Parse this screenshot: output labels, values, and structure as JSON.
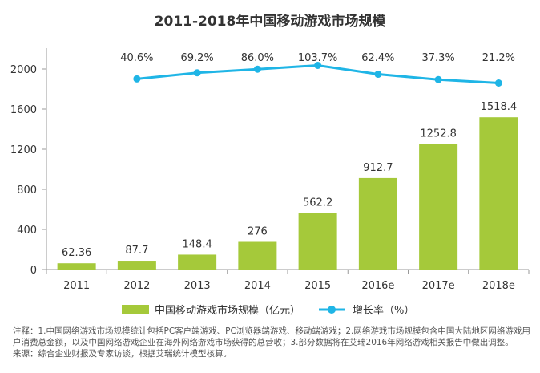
{
  "chart_data": {
    "type": "bar",
    "title": "2011-2018年中国移动游戏市场规模",
    "categories": [
      "2011",
      "2012",
      "2013",
      "2014",
      "2015",
      "2016e",
      "2017e",
      "2018e"
    ],
    "series": [
      {
        "name": "中国移动游戏市场规模（亿元）",
        "type": "bar",
        "color": "#a5c93a",
        "values": [
          62.36,
          87.7,
          148.4,
          276,
          562.2,
          912.7,
          1252.8,
          1518.4
        ],
        "labels": [
          "62.36",
          "87.7",
          "148.4",
          "276",
          "562.2",
          "912.7",
          "1252.8",
          "1518.4"
        ]
      },
      {
        "name": "增长率（%）",
        "type": "line",
        "color": "#1fb5e6",
        "values": [
          null,
          40.6,
          69.2,
          86.0,
          103.7,
          62.4,
          37.3,
          21.2
        ],
        "labels": [
          "",
          "40.6%",
          "69.2%",
          "86.0%",
          "103.7%",
          "62.4%",
          "37.3%",
          "21.2%"
        ]
      }
    ],
    "yticks": [
      "0",
      "400",
      "800",
      "1200",
      "1600",
      "2000"
    ],
    "ylim": [
      0,
      2000
    ],
    "legend_position": "bottom"
  },
  "notes": {
    "line1": "注释：1.中国网络游戏市场规模统计包括PC客户端游戏、PC浏览器端游戏、移动端游戏；2.网络游戏市场规模包含中国大陆地区网络游戏用户消费总金额，以及中国网络游戏企业在海外网络游戏市场获得的总营收；3.部分数据将在艾瑞2016年网络游戏相关报告中做出调整。",
    "line2": "来源：综合企业财报及专家访谈，根据艾瑞统计模型核算。"
  }
}
